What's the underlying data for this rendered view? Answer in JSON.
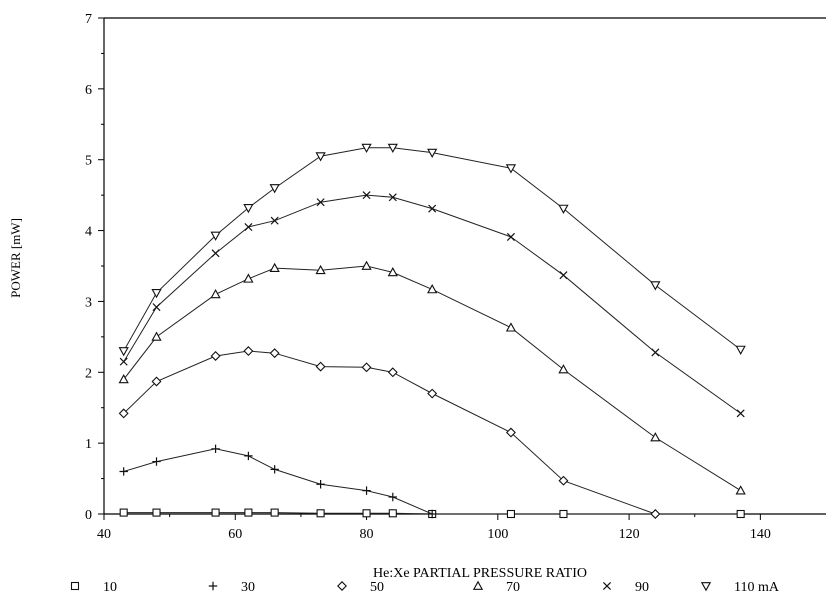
{
  "chart_data": {
    "type": "line",
    "title": "",
    "xlabel": "He:Xe PARTIAL PRESSURE RATIO",
    "ylabel": "POWER [mW]",
    "xlim": [
      40,
      150
    ],
    "ylim": [
      0,
      7
    ],
    "xticks": [
      40,
      60,
      80,
      100,
      120,
      140
    ],
    "yticks": [
      0,
      1,
      2,
      3,
      4,
      5,
      6,
      7
    ],
    "grid": false,
    "legend_position": "bottom",
    "series": [
      {
        "name": "10",
        "marker": "square",
        "points": [
          [
            43,
            0.02
          ],
          [
            48,
            0.02
          ],
          [
            57,
            0.02
          ],
          [
            62,
            0.02
          ],
          [
            66,
            0.02
          ],
          [
            73,
            0.01
          ],
          [
            80,
            0.01
          ],
          [
            84,
            0.01
          ],
          [
            90,
            0.0
          ],
          [
            102,
            0.0
          ],
          [
            110,
            0.0
          ],
          [
            137,
            0.0
          ]
        ]
      },
      {
        "name": "30",
        "marker": "plus",
        "points": [
          [
            43,
            0.6
          ],
          [
            48,
            0.74
          ],
          [
            57,
            0.92
          ],
          [
            62,
            0.82
          ],
          [
            66,
            0.63
          ],
          [
            73,
            0.42
          ],
          [
            80,
            0.33
          ],
          [
            84,
            0.24
          ],
          [
            90,
            0.0
          ]
        ]
      },
      {
        "name": "50",
        "marker": "diamond",
        "points": [
          [
            43,
            1.42
          ],
          [
            48,
            1.87
          ],
          [
            57,
            2.23
          ],
          [
            62,
            2.3
          ],
          [
            66,
            2.27
          ],
          [
            73,
            2.08
          ],
          [
            80,
            2.07
          ],
          [
            84,
            2.0
          ],
          [
            90,
            1.7
          ],
          [
            102,
            1.15
          ],
          [
            110,
            0.47
          ],
          [
            124,
            0.0
          ]
        ]
      },
      {
        "name": "70",
        "marker": "triangle-up",
        "points": [
          [
            43,
            1.9
          ],
          [
            48,
            2.5
          ],
          [
            57,
            3.1
          ],
          [
            62,
            3.32
          ],
          [
            66,
            3.47
          ],
          [
            73,
            3.44
          ],
          [
            80,
            3.5
          ],
          [
            84,
            3.41
          ],
          [
            90,
            3.17
          ],
          [
            102,
            2.63
          ],
          [
            110,
            2.04
          ],
          [
            124,
            1.08
          ],
          [
            137,
            0.33
          ]
        ]
      },
      {
        "name": "90",
        "marker": "x",
        "points": [
          [
            43,
            2.15
          ],
          [
            48,
            2.92
          ],
          [
            57,
            3.68
          ],
          [
            62,
            4.05
          ],
          [
            66,
            4.14
          ],
          [
            73,
            4.4
          ],
          [
            80,
            4.5
          ],
          [
            84,
            4.47
          ],
          [
            90,
            4.31
          ],
          [
            102,
            3.91
          ],
          [
            110,
            3.37
          ],
          [
            124,
            2.28
          ],
          [
            137,
            1.42
          ]
        ]
      },
      {
        "name": "110 mA",
        "marker": "triangle-down",
        "points": [
          [
            43,
            2.3
          ],
          [
            48,
            3.12
          ],
          [
            57,
            3.93
          ],
          [
            62,
            4.32
          ],
          [
            66,
            4.6
          ],
          [
            73,
            5.05
          ],
          [
            80,
            5.17
          ],
          [
            84,
            5.17
          ],
          [
            90,
            5.1
          ],
          [
            102,
            4.88
          ],
          [
            110,
            4.31
          ],
          [
            124,
            3.23
          ],
          [
            137,
            2.32
          ]
        ]
      }
    ]
  }
}
